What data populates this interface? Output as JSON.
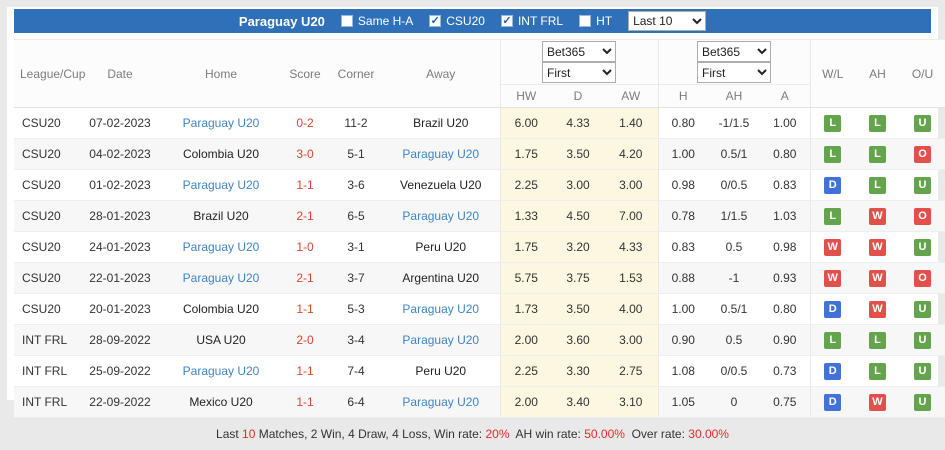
{
  "colors": {
    "bar_blue": "#2f70b8",
    "team_blue": "#3d85c6",
    "score_red": "#d9452c",
    "footer_red": "#e02b2b",
    "odds_bg": "#fcf7e0"
  },
  "badge_colors": {
    "W": "#e2504c",
    "D": "#4272d8",
    "L": "#63a44c",
    "O": "#e2504c",
    "U": "#63a44c"
  },
  "header": {
    "title": "Paraguay U20",
    "checkboxes": [
      {
        "label": "Same H-A",
        "checked": false
      },
      {
        "label": "CSU20",
        "checked": true
      },
      {
        "label": "INT FRL",
        "checked": true
      },
      {
        "label": "HT",
        "checked": false
      }
    ],
    "last_dropdown": "Last 10"
  },
  "table": {
    "columns": [
      "League/Cup",
      "Date",
      "Home",
      "Score",
      "Corner",
      "Away"
    ],
    "odds_group1": {
      "bookmaker": "Bet365",
      "period": "First",
      "subcols": [
        "HW",
        "D",
        "AW"
      ]
    },
    "odds_group2": {
      "bookmaker": "Bet365",
      "period": "First",
      "subcols": [
        "H",
        "AH",
        "A"
      ]
    },
    "result_cols": [
      "W/L",
      "AH",
      "O/U"
    ],
    "rows": [
      {
        "league": "CSU20",
        "date": "07-02-2023",
        "home": "Paraguay U20",
        "home_highlight": true,
        "score": "0-2",
        "corner": "11-2",
        "away": "Brazil U20",
        "away_highlight": false,
        "hw": "6.00",
        "d": "4.33",
        "aw": "1.40",
        "h": "0.80",
        "ah": "-1/1.5",
        "a": "1.00",
        "wl": "L",
        "ah_res": "L",
        "ou": "U"
      },
      {
        "league": "CSU20",
        "date": "04-02-2023",
        "home": "Colombia U20",
        "home_highlight": false,
        "score": "3-0",
        "corner": "5-1",
        "away": "Paraguay U20",
        "away_highlight": true,
        "hw": "1.75",
        "d": "3.50",
        "aw": "4.20",
        "h": "1.00",
        "ah": "0.5/1",
        "a": "0.80",
        "wl": "L",
        "ah_res": "L",
        "ou": "O"
      },
      {
        "league": "CSU20",
        "date": "01-02-2023",
        "home": "Paraguay U20",
        "home_highlight": true,
        "score": "1-1",
        "corner": "3-6",
        "away": "Venezuela U20",
        "away_highlight": false,
        "hw": "2.25",
        "d": "3.00",
        "aw": "3.00",
        "h": "0.98",
        "ah": "0/0.5",
        "a": "0.83",
        "wl": "D",
        "ah_res": "L",
        "ou": "U"
      },
      {
        "league": "CSU20",
        "date": "28-01-2023",
        "home": "Brazil U20",
        "home_highlight": false,
        "score": "2-1",
        "corner": "6-5",
        "away": "Paraguay U20",
        "away_highlight": true,
        "hw": "1.33",
        "d": "4.50",
        "aw": "7.00",
        "h": "0.78",
        "ah": "1/1.5",
        "a": "1.03",
        "wl": "L",
        "ah_res": "W",
        "ou": "O"
      },
      {
        "league": "CSU20",
        "date": "24-01-2023",
        "home": "Paraguay U20",
        "home_highlight": true,
        "score": "1-0",
        "corner": "3-1",
        "away": "Peru U20",
        "away_highlight": false,
        "hw": "1.75",
        "d": "3.20",
        "aw": "4.33",
        "h": "0.83",
        "ah": "0.5",
        "a": "0.98",
        "wl": "W",
        "ah_res": "W",
        "ou": "U"
      },
      {
        "league": "CSU20",
        "date": "22-01-2023",
        "home": "Paraguay U20",
        "home_highlight": true,
        "score": "2-1",
        "corner": "3-7",
        "away": "Argentina U20",
        "away_highlight": false,
        "hw": "5.75",
        "d": "3.75",
        "aw": "1.53",
        "h": "0.88",
        "ah": "-1",
        "a": "0.93",
        "wl": "W",
        "ah_res": "W",
        "ou": "O"
      },
      {
        "league": "CSU20",
        "date": "20-01-2023",
        "home": "Colombia U20",
        "home_highlight": false,
        "score": "1-1",
        "corner": "5-3",
        "away": "Paraguay U20",
        "away_highlight": true,
        "hw": "1.73",
        "d": "3.50",
        "aw": "4.00",
        "h": "1.00",
        "ah": "0.5/1",
        "a": "0.80",
        "wl": "D",
        "ah_res": "W",
        "ou": "U"
      },
      {
        "league": "INT FRL",
        "date": "28-09-2022",
        "home": "USA U20",
        "home_highlight": false,
        "score": "2-0",
        "corner": "3-4",
        "away": "Paraguay U20",
        "away_highlight": true,
        "hw": "2.00",
        "d": "3.60",
        "aw": "3.00",
        "h": "0.90",
        "ah": "0.5",
        "a": "0.90",
        "wl": "L",
        "ah_res": "L",
        "ou": "U"
      },
      {
        "league": "INT FRL",
        "date": "25-09-2022",
        "home": "Paraguay U20",
        "home_highlight": true,
        "score": "1-1",
        "corner": "7-4",
        "away": "Peru U20",
        "away_highlight": false,
        "hw": "2.25",
        "d": "3.30",
        "aw": "2.75",
        "h": "1.08",
        "ah": "0/0.5",
        "a": "0.73",
        "wl": "D",
        "ah_res": "L",
        "ou": "U"
      },
      {
        "league": "INT FRL",
        "date": "22-09-2022",
        "home": "Mexico U20",
        "home_highlight": false,
        "score": "1-1",
        "corner": "6-4",
        "away": "Paraguay U20",
        "away_highlight": true,
        "hw": "2.00",
        "d": "3.40",
        "aw": "3.10",
        "h": "1.05",
        "ah": "0",
        "a": "0.75",
        "wl": "D",
        "ah_res": "W",
        "ou": "U"
      }
    ]
  },
  "footer": {
    "segments": [
      {
        "text": "Last ",
        "red": false
      },
      {
        "text": "10",
        "red": true
      },
      {
        "text": " Matches, 2 Win, 4 Draw, 4 Loss, Win rate: ",
        "red": false
      },
      {
        "text": "20%",
        "red": true
      },
      {
        "text": "  AH win rate: ",
        "red": false
      },
      {
        "text": "50.00%",
        "red": true
      },
      {
        "text": "  Over rate: ",
        "red": false
      },
      {
        "text": "30.00%",
        "red": true
      }
    ]
  }
}
